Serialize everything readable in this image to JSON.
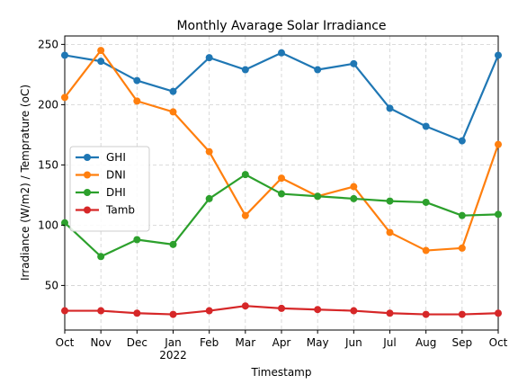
{
  "chart_data": {
    "type": "line",
    "title": "Monthly Avarage Solar Irradiance",
    "xlabel": "Timestamp",
    "ylabel": "Irradiance (W/m2) / Temprature (oC)",
    "categories": [
      "Oct",
      "Nov",
      "Dec",
      "Jan",
      "Feb",
      "Mar",
      "Apr",
      "May",
      "Jun",
      "Jul",
      "Aug",
      "Sep",
      "Oct"
    ],
    "year_label": "2022",
    "year_label_index": 3,
    "ylim": [
      13,
      257
    ],
    "yticks": [
      50,
      100,
      150,
      200,
      250
    ],
    "grid": true,
    "legend": "center-left",
    "series": [
      {
        "name": "GHI",
        "color": "#1f77b4",
        "values": [
          241,
          236,
          220,
          211,
          239,
          229,
          243,
          229,
          234,
          197,
          182,
          170,
          241
        ]
      },
      {
        "name": "DNI",
        "color": "#ff7f0e",
        "values": [
          206,
          245,
          203,
          194,
          161,
          108,
          139,
          124,
          132,
          94,
          79,
          81,
          167
        ]
      },
      {
        "name": "DHI",
        "color": "#2ca02c",
        "values": [
          102,
          74,
          88,
          84,
          122,
          142,
          126,
          124,
          122,
          120,
          119,
          108,
          109
        ]
      },
      {
        "name": "Tamb",
        "color": "#d62728",
        "values": [
          29,
          29,
          27,
          26,
          29,
          33,
          31,
          30,
          29,
          27,
          26,
          26,
          27
        ]
      }
    ]
  }
}
